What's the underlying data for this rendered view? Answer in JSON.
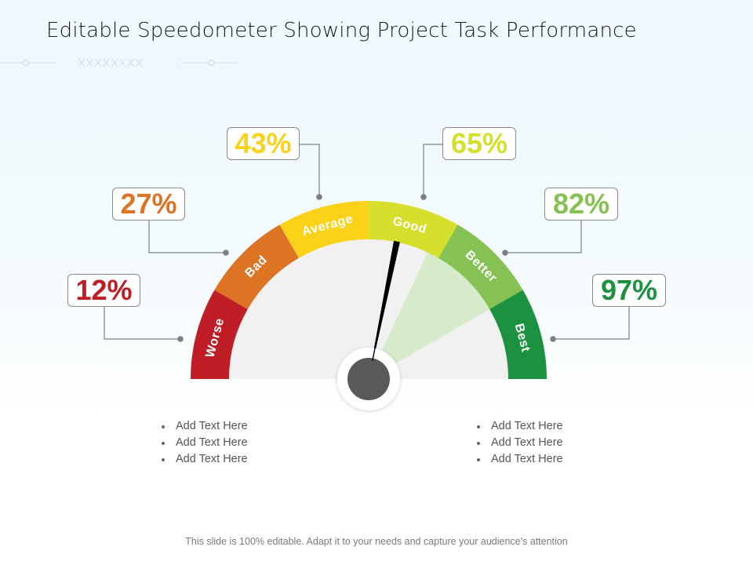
{
  "slide": {
    "title": "Editable Speedometer Showing Project Task Performance",
    "footer": "This slide is 100% editable. Adapt it to your needs and capture your audience's attention",
    "decoration": {
      "cross_pattern": "XXXXXXXX"
    }
  },
  "colors": {
    "worse": "#c01e27",
    "bad": "#dc7424",
    "average": "#fbd21a",
    "good": "#d6df2c",
    "better": "#86c154",
    "best": "#1c9140",
    "gauge_face": "#f1f1f2",
    "highlight_wedge": "#d5ebc9",
    "needle": "#000000",
    "hub": "#595959",
    "connector": "#7f7f7f"
  },
  "gauge": {
    "needle_angle_deg": 101.6,
    "highlight_wedge_deg": [
      115,
      150
    ],
    "segments": [
      {
        "key": "worse",
        "label": "Worse",
        "percent": "12%"
      },
      {
        "key": "bad",
        "label": "Bad",
        "percent": "27%"
      },
      {
        "key": "average",
        "label": "Average",
        "percent": "43%"
      },
      {
        "key": "good",
        "label": "Good",
        "percent": "65%"
      },
      {
        "key": "better",
        "label": "Better",
        "percent": "82%"
      },
      {
        "key": "best",
        "label": "Best",
        "percent": "97%"
      }
    ]
  },
  "left_bullets": [
    "Add Text Here",
    "Add Text Here",
    "Add Text Here"
  ],
  "right_bullets": [
    "Add Text Here",
    "Add Text Here",
    "Add Text Here"
  ],
  "chart_data": {
    "type": "gauge",
    "title": "Editable Speedometer Showing Project Task Performance",
    "categories": [
      "Worse",
      "Bad",
      "Average",
      "Good",
      "Better",
      "Best"
    ],
    "values": [
      12,
      27,
      43,
      65,
      82,
      97
    ],
    "unit": "%",
    "range": [
      0,
      180
    ],
    "segment_span_deg": 30,
    "needle_position": "Good segment (approx. 101.6° of 180°)"
  }
}
